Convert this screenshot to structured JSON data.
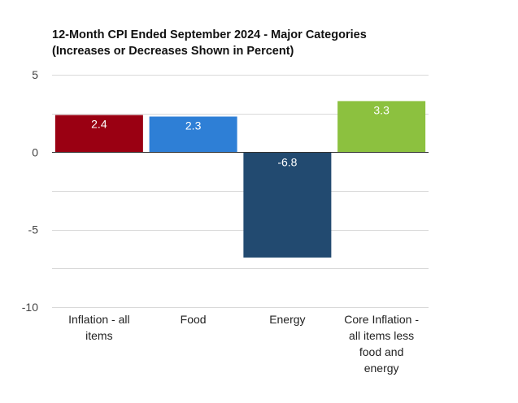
{
  "chart_data": {
    "type": "bar",
    "title": "12-Month CPI Ended September 2024 - Major Categories",
    "subtitle": "(Increases or Decreases Shown in Percent)",
    "xlabel": "",
    "ylabel": "",
    "ylim": [
      -10,
      5
    ],
    "yticks": [
      "5",
      "0",
      "-5",
      "-10"
    ],
    "grid": true,
    "legend": "none",
    "categories": [
      [
        "Inflation - all",
        "items"
      ],
      [
        "Food"
      ],
      [
        "Energy"
      ],
      [
        "Core Inflation -",
        "all items less",
        "food and",
        "energy"
      ]
    ],
    "values": [
      2.4,
      2.3,
      -6.8,
      3.3
    ],
    "data_labels": [
      "2.4",
      "2.3",
      "-6.8",
      "3.3"
    ],
    "colors": [
      "#9a0012",
      "#2e7fd6",
      "#224a70",
      "#8cc13f"
    ]
  }
}
